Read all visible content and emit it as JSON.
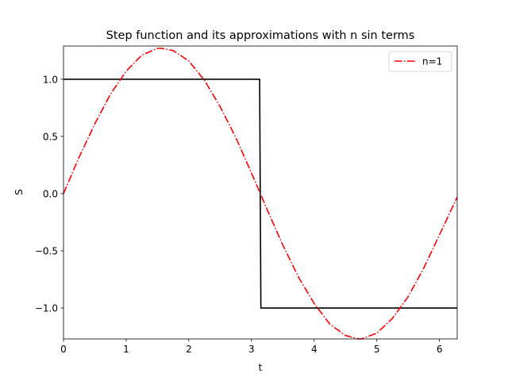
{
  "chart_data": {
    "type": "line",
    "title": "Step function and its approximations with n sin terms",
    "xlabel": "t",
    "ylabel": "S",
    "xlim": [
      0,
      6.283
    ],
    "ylim": [
      -1.27,
      1.29
    ],
    "x_ticks": [
      0,
      1,
      2,
      3,
      4,
      5,
      6
    ],
    "x_tick_labels": [
      "0",
      "1",
      "2",
      "3",
      "4",
      "5",
      "6"
    ],
    "y_ticks": [
      -1.0,
      -0.5,
      0.0,
      0.5,
      1.0
    ],
    "y_tick_labels": [
      "−1.0",
      "−0.5",
      "0.0",
      "0.5",
      "1.0"
    ],
    "grid": false,
    "legend_position": "top-right",
    "series": [
      {
        "color": "#000000",
        "style": "solid",
        "points": [
          [
            0,
            1.0
          ],
          [
            3.13,
            1.0
          ],
          [
            3.15,
            -1.0
          ],
          [
            6.283,
            -1.0
          ]
        ]
      },
      {
        "name": "n=1",
        "color": "#ff0000",
        "style": "dashdot",
        "points": [
          [
            0.0,
            0.0
          ],
          [
            0.25,
            0.32
          ],
          [
            0.5,
            0.61
          ],
          [
            0.75,
            0.87
          ],
          [
            1.0,
            1.07
          ],
          [
            1.25,
            1.21
          ],
          [
            1.5,
            1.27
          ],
          [
            1.571,
            1.27
          ],
          [
            1.75,
            1.25
          ],
          [
            2.0,
            1.16
          ],
          [
            2.25,
            0.99
          ],
          [
            2.5,
            0.76
          ],
          [
            2.75,
            0.49
          ],
          [
            3.0,
            0.18
          ],
          [
            3.142,
            0.0
          ],
          [
            3.25,
            -0.14
          ],
          [
            3.5,
            -0.45
          ],
          [
            3.75,
            -0.73
          ],
          [
            4.0,
            -0.96
          ],
          [
            4.25,
            -1.14
          ],
          [
            4.5,
            -1.24
          ],
          [
            4.712,
            -1.27
          ],
          [
            4.75,
            -1.27
          ],
          [
            5.0,
            -1.22
          ],
          [
            5.25,
            -1.09
          ],
          [
            5.5,
            -0.9
          ],
          [
            5.75,
            -0.65
          ],
          [
            6.0,
            -0.36
          ],
          [
            6.283,
            -0.03
          ]
        ]
      }
    ]
  }
}
